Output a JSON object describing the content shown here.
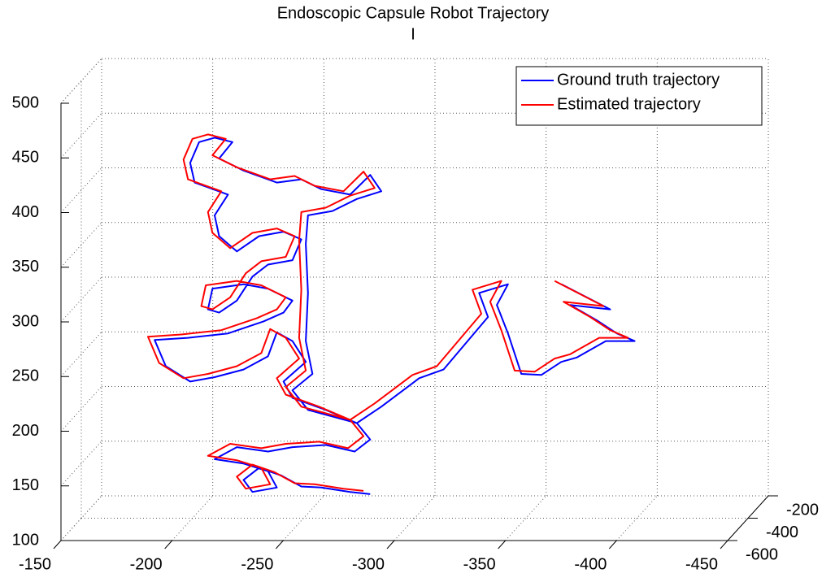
{
  "chart_data": {
    "type": "line3d",
    "title": "Endoscopic Capsule Robot Trajectory",
    "subtitle": "I",
    "xlim": [
      -150,
      -450
    ],
    "xticks": [
      -150,
      -200,
      -250,
      -300,
      -350,
      -400,
      -450
    ],
    "ylim": [
      -600,
      -200
    ],
    "yticks": [
      -600,
      -400,
      -200
    ],
    "zlim": [
      100,
      500
    ],
    "zticks": [
      100,
      150,
      200,
      250,
      300,
      350,
      400,
      450,
      500
    ],
    "grid": true,
    "legend": "upper right",
    "series": [
      {
        "name": "Ground truth trajectory",
        "color": "#0000ff",
        "x": [
          -280,
          -271,
          -258,
          -249,
          -240,
          -230,
          -223,
          -227,
          -238,
          -234,
          -223,
          -210,
          -220,
          -234,
          -245,
          -260,
          -273,
          -280,
          -274,
          -260,
          -245,
          -241,
          -251,
          -245,
          -238,
          -234,
          -223,
          -210,
          -199,
          -188,
          -183,
          -198,
          -216,
          -232,
          -241,
          -245,
          -234,
          -223,
          -209,
          -207,
          -212,
          -220,
          -227,
          -234,
          -245,
          -249,
          -241,
          -230,
          -220,
          -212,
          -210,
          -216,
          -201,
          -199,
          -203,
          -210,
          -218,
          -212,
          -223,
          -238,
          -249,
          -258,
          -271,
          -280,
          -285,
          -274,
          -263,
          -252,
          -251,
          -252,
          -251,
          -254,
          -245,
          -252,
          -274,
          -285,
          -302,
          -313,
          -333,
          -329,
          -342,
          -337,
          -342,
          -348,
          -357,
          -366,
          -373,
          -386,
          -399,
          -391,
          -382,
          -370,
          -388,
          -366
        ],
        "y": [
          -400,
          -400,
          -400,
          -400,
          -400,
          -400,
          -400,
          -400,
          -400,
          -400,
          -400,
          -400,
          -400,
          -400,
          -400,
          -400,
          -400,
          -400,
          -400,
          -400,
          -400,
          -400,
          -400,
          -400,
          -400,
          -400,
          -400,
          -400,
          -400,
          -400,
          -400,
          -400,
          -400,
          -400,
          -400,
          -400,
          -400,
          -400,
          -400,
          -400,
          -400,
          -400,
          -400,
          -400,
          -400,
          -400,
          -400,
          -400,
          -400,
          -400,
          -400,
          -400,
          -400,
          -400,
          -400,
          -400,
          -400,
          -400,
          -400,
          -400,
          -400,
          -400,
          -400,
          -400,
          -400,
          -400,
          -400,
          -400,
          -400,
          -400,
          -400,
          -400,
          -400,
          -400,
          -400,
          -400,
          -400,
          -400,
          -400,
          -400,
          -400,
          -400,
          -400,
          -400,
          -400,
          -400,
          -400,
          -400,
          -400,
          -400,
          -400,
          -400,
          -400,
          -400
        ],
        "z": [
          122,
          124,
          128,
          129,
          139,
          146,
          135,
          124,
          128,
          143,
          150,
          154,
          165,
          161,
          165,
          167,
          161,
          172,
          187,
          199,
          210,
          225,
          243,
          262,
          270,
          248,
          236,
          229,
          225,
          239,
          263,
          265,
          269,
          280,
          288,
          299,
          310,
          314,
          310,
          291,
          288,
          299,
          321,
          332,
          336,
          355,
          362,
          358,
          344,
          358,
          377,
          396,
          407,
          425,
          444,
          448,
          444,
          429,
          418,
          407,
          410,
          401,
          396,
          414,
          399,
          392,
          381,
          377,
          351,
          306,
          262,
          232,
          217,
          199,
          187,
          202,
          228,
          236,
          284,
          306,
          314,
          295,
          269,
          232,
          231,
          243,
          247,
          262,
          262,
          269,
          281,
          295,
          291,
          314
        ]
      },
      {
        "name": "Estimated trajectory",
        "color": "#ff0000",
        "x": [
          -277,
          -268,
          -255,
          -246,
          -237,
          -227,
          -220,
          -224,
          -235,
          -231,
          -220,
          -207,
          -217,
          -231,
          -242,
          -257,
          -270,
          -277,
          -271,
          -257,
          -242,
          -238,
          -248,
          -242,
          -235,
          -231,
          -220,
          -207,
          -196,
          -185,
          -180,
          -195,
          -213,
          -229,
          -238,
          -242,
          -231,
          -220,
          -206,
          -204,
          -209,
          -217,
          -224,
          -231,
          -242,
          -246,
          -238,
          -227,
          -217,
          -209,
          -207,
          -213,
          -198,
          -196,
          -200,
          -207,
          -215,
          -209,
          -220,
          -235,
          -246,
          -255,
          -268,
          -277,
          -282,
          -271,
          -260,
          -249,
          -248,
          -249,
          -248,
          -251,
          -242,
          -249,
          -271,
          -282,
          -299,
          -310,
          -330,
          -326,
          -339,
          -334,
          -339,
          -345,
          -354,
          -363,
          -370,
          -383,
          -396,
          -388,
          -379,
          -367,
          -385,
          -363
        ],
        "y": [
          -400,
          -400,
          -400,
          -400,
          -400,
          -400,
          -400,
          -400,
          -400,
          -400,
          -400,
          -400,
          -400,
          -400,
          -400,
          -400,
          -400,
          -400,
          -400,
          -400,
          -400,
          -400,
          -400,
          -400,
          -400,
          -400,
          -400,
          -400,
          -400,
          -400,
          -400,
          -400,
          -400,
          -400,
          -400,
          -400,
          -400,
          -400,
          -400,
          -400,
          -400,
          -400,
          -400,
          -400,
          -400,
          -400,
          -400,
          -400,
          -400,
          -400,
          -400,
          -400,
          -400,
          -400,
          -400,
          -400,
          -400,
          -400,
          -400,
          -400,
          -400,
          -400,
          -400,
          -400,
          -400,
          -400,
          -400,
          -400,
          -400,
          -400,
          -400,
          -400,
          -400,
          -400,
          -400,
          -400,
          -400,
          -400,
          -400,
          -400,
          -400,
          -400,
          -400,
          -400,
          -400,
          -400,
          -400,
          -400,
          -400,
          -400,
          -400,
          -400,
          -400,
          -400
        ],
        "z": [
          125,
          127,
          131,
          132,
          142,
          149,
          138,
          127,
          131,
          146,
          153,
          157,
          168,
          164,
          168,
          170,
          164,
          175,
          190,
          202,
          213,
          228,
          246,
          265,
          273,
          251,
          239,
          232,
          228,
          242,
          266,
          268,
          272,
          283,
          291,
          302,
          313,
          317,
          313,
          294,
          291,
          302,
          324,
          335,
          339,
          358,
          365,
          361,
          347,
          361,
          380,
          399,
          410,
          428,
          447,
          451,
          447,
          432,
          421,
          410,
          413,
          404,
          399,
          417,
          402,
          395,
          384,
          380,
          354,
          309,
          265,
          235,
          220,
          202,
          190,
          205,
          231,
          239,
          287,
          309,
          317,
          298,
          272,
          235,
          234,
          246,
          250,
          265,
          265,
          272,
          284,
          298,
          294,
          317
        ]
      }
    ]
  }
}
